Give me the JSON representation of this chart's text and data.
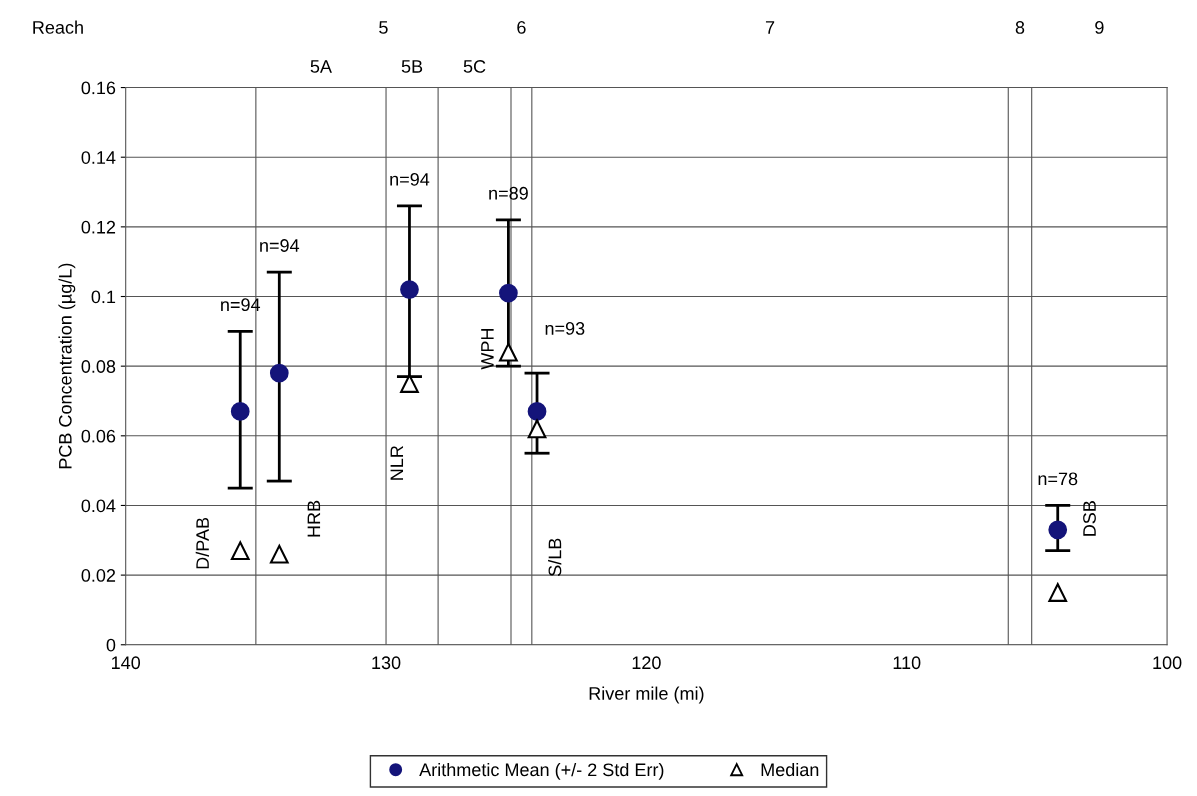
{
  "chart_data": {
    "type": "scatter",
    "xlabel": "River mile (mi)",
    "ylabel": "PCB Concentration (µg/L)",
    "xlim": [
      140,
      100
    ],
    "xticks": [
      140,
      130,
      120,
      110,
      100
    ],
    "ylim": [
      0,
      0.16
    ],
    "yticks": [
      0,
      0.02,
      0.04,
      0.06,
      0.08,
      0.1,
      0.12,
      0.14,
      0.16
    ],
    "grid": "y",
    "legend": "bottom",
    "series": [
      {
        "name": "Arithmetic Mean (+/- 2 Std Err)",
        "color": "#14147a",
        "marker": "circle",
        "x": [
          135.6,
          134.1,
          129.1,
          125.3,
          124.2,
          104.2
        ],
        "values": [
          0.067,
          0.078,
          0.102,
          0.101,
          0.067,
          0.033
        ],
        "errors": [
          [
            0.045,
            0.09
          ],
          [
            0.047,
            0.107
          ],
          [
            0.077,
            0.126
          ],
          [
            0.08,
            0.122
          ],
          [
            0.055,
            0.078
          ],
          [
            0.027,
            0.04
          ]
        ]
      },
      {
        "name": "Median",
        "color": "#000000",
        "marker": "triangle",
        "x": [
          135.6,
          134.1,
          129.1,
          125.3,
          124.2,
          104.2
        ],
        "values": [
          0.027,
          0.026,
          0.075,
          0.084,
          0.062,
          0.015
        ]
      }
    ],
    "ref_lines": [
      {
        "axis": "x",
        "value": 135
      },
      {
        "axis": "x",
        "value": 130
      },
      {
        "axis": "x",
        "value": 128
      },
      {
        "axis": "x",
        "value": 125.2
      },
      {
        "axis": "x",
        "value": 124.4
      },
      {
        "axis": "x",
        "value": 106.1
      },
      {
        "axis": "x",
        "value": 105.2
      }
    ],
    "annotations": [
      "D/PAB",
      "HRB",
      "NLR",
      "WPH",
      "S/LB",
      "DSB",
      "n=94",
      "n=94",
      "n=94",
      "n=89",
      "n=93",
      "n=78",
      "Reach",
      "5",
      "6",
      "7",
      "8",
      "9",
      "5A",
      "5B",
      "5C"
    ]
  }
}
